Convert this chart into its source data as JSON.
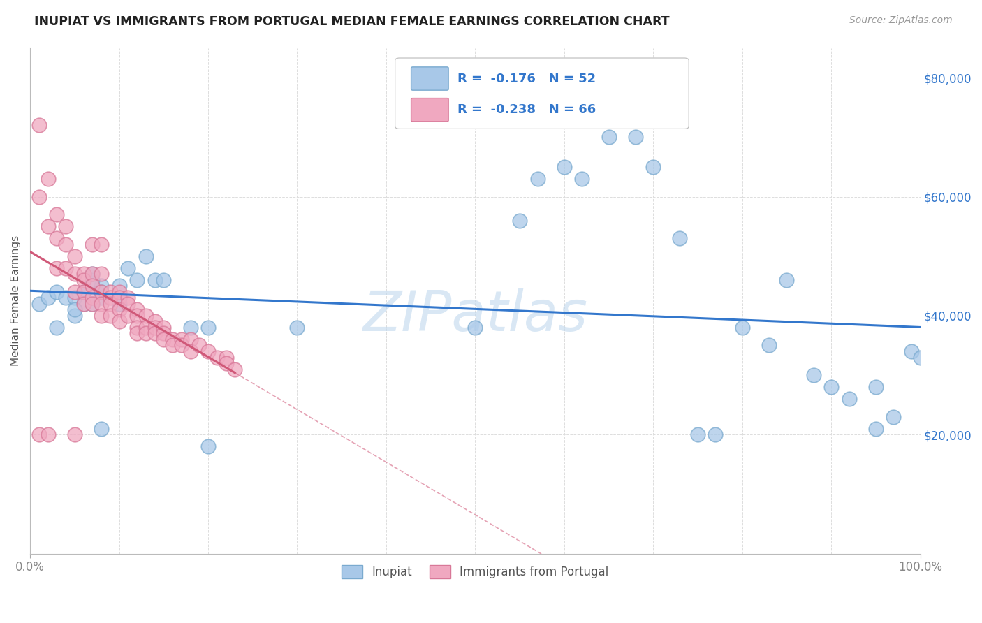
{
  "title": "INUPIAT VS IMMIGRANTS FROM PORTUGAL MEDIAN FEMALE EARNINGS CORRELATION CHART",
  "source": "Source: ZipAtlas.com",
  "ylabel": "Median Female Earnings",
  "xlim": [
    0,
    100
  ],
  "ylim": [
    0,
    85000
  ],
  "yticks": [
    0,
    20000,
    40000,
    60000,
    80000
  ],
  "xtick_positions": [
    0,
    100
  ],
  "xtick_labels": [
    "0.0%",
    "100.0%"
  ],
  "ytick_labels_right": [
    "",
    "$20,000",
    "$40,000",
    "$60,000",
    "$80,000"
  ],
  "background_color": "#ffffff",
  "grid_color": "#dddddd",
  "watermark": "ZIPatlas",
  "watermark_color": "#c0d8ee",
  "series1_label": "Inupiat",
  "series1_color": "#a8c8e8",
  "series1_edge": "#7aaacf",
  "series1_R": "-0.176",
  "series1_N": "52",
  "series1_trend_color": "#3377cc",
  "series2_label": "Immigrants from Portugal",
  "series2_color": "#f0a8c0",
  "series2_edge": "#d87898",
  "series2_R": "-0.238",
  "series2_N": "66",
  "series2_trend_color": "#d05878",
  "legend_text_color": "#3377cc",
  "inupiat_x": [
    1,
    2,
    3,
    4,
    5,
    5,
    6,
    7,
    8,
    3,
    5,
    6,
    7,
    8,
    10,
    10,
    11,
    13,
    14,
    50,
    55,
    57,
    60,
    62,
    65,
    68,
    70,
    73,
    75,
    77,
    80,
    83,
    85,
    88,
    90,
    92,
    95,
    97,
    99,
    100,
    6,
    7,
    8,
    10,
    12,
    15,
    18,
    20,
    30,
    20,
    95,
    8
  ],
  "inupiat_y": [
    42000,
    43000,
    44000,
    43000,
    40000,
    43000,
    42000,
    42000,
    45000,
    38000,
    41000,
    44000,
    46000,
    43000,
    43000,
    42000,
    48000,
    50000,
    46000,
    38000,
    56000,
    63000,
    65000,
    63000,
    70000,
    70000,
    65000,
    53000,
    20000,
    20000,
    38000,
    35000,
    46000,
    30000,
    28000,
    26000,
    28000,
    23000,
    34000,
    33000,
    44000,
    47000,
    44000,
    45000,
    46000,
    46000,
    38000,
    38000,
    38000,
    18000,
    21000,
    21000
  ],
  "portugal_x": [
    1,
    1,
    2,
    2,
    3,
    3,
    3,
    4,
    4,
    4,
    5,
    5,
    5,
    5,
    6,
    6,
    6,
    6,
    7,
    7,
    7,
    7,
    7,
    8,
    8,
    8,
    8,
    8,
    9,
    9,
    9,
    9,
    10,
    10,
    10,
    10,
    11,
    11,
    11,
    12,
    12,
    12,
    12,
    13,
    13,
    13,
    14,
    14,
    14,
    15,
    15,
    15,
    16,
    16,
    17,
    17,
    18,
    18,
    19,
    20,
    21,
    22,
    22,
    23,
    1,
    2
  ],
  "portugal_y": [
    72000,
    20000,
    63000,
    20000,
    57000,
    53000,
    48000,
    55000,
    52000,
    48000,
    50000,
    47000,
    44000,
    20000,
    47000,
    46000,
    44000,
    42000,
    52000,
    47000,
    45000,
    43000,
    42000,
    52000,
    47000,
    44000,
    42000,
    40000,
    44000,
    43000,
    42000,
    40000,
    44000,
    43000,
    41000,
    39000,
    43000,
    42000,
    40000,
    41000,
    40000,
    38000,
    37000,
    40000,
    38000,
    37000,
    39000,
    38000,
    37000,
    38000,
    37000,
    36000,
    36000,
    35000,
    36000,
    35000,
    36000,
    34000,
    35000,
    34000,
    33000,
    33000,
    32000,
    31000,
    60000,
    55000
  ]
}
